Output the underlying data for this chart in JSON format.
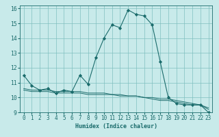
{
  "title": "",
  "xlabel": "Humidex (Indice chaleur)",
  "background_color": "#c8eaea",
  "grid_color": "#7fbfbf",
  "line_color": "#1a6b6b",
  "xlim": [
    -0.5,
    23.5
  ],
  "ylim": [
    9,
    16.2
  ],
  "yticks": [
    9,
    10,
    11,
    12,
    13,
    14,
    15,
    16
  ],
  "xticks": [
    0,
    1,
    2,
    3,
    4,
    5,
    6,
    7,
    8,
    9,
    10,
    11,
    12,
    13,
    14,
    15,
    16,
    17,
    18,
    19,
    20,
    21,
    22,
    23
  ],
  "series1_x": [
    0,
    1,
    2,
    3,
    4,
    5,
    6,
    7,
    8,
    9,
    10,
    11,
    12,
    13,
    14,
    15,
    16,
    17,
    18,
    19,
    20,
    21,
    22,
    23
  ],
  "series1_y": [
    11.5,
    10.8,
    10.5,
    10.6,
    10.3,
    10.5,
    10.4,
    11.5,
    10.9,
    12.7,
    14.0,
    14.9,
    14.7,
    15.9,
    15.6,
    15.5,
    14.9,
    12.4,
    10.0,
    9.6,
    9.5,
    9.5,
    9.5,
    9.0
  ],
  "series2_x": [
    0,
    1,
    2,
    3,
    4,
    5,
    6,
    7,
    8,
    9,
    10,
    11,
    12,
    13,
    14,
    15,
    16,
    17,
    18,
    19,
    20,
    21,
    22,
    23
  ],
  "series2_y": [
    10.5,
    10.4,
    10.4,
    10.4,
    10.3,
    10.3,
    10.3,
    10.3,
    10.2,
    10.2,
    10.2,
    10.2,
    10.1,
    10.1,
    10.1,
    10.0,
    10.0,
    9.9,
    9.9,
    9.8,
    9.7,
    9.6,
    9.5,
    9.3
  ],
  "series3_x": [
    0,
    1,
    2,
    3,
    4,
    5,
    6,
    7,
    8,
    9,
    10,
    11,
    12,
    13,
    14,
    15,
    16,
    17,
    18,
    19,
    20,
    21,
    22,
    23
  ],
  "series3_y": [
    10.6,
    10.5,
    10.5,
    10.5,
    10.4,
    10.4,
    10.4,
    10.4,
    10.3,
    10.3,
    10.3,
    10.2,
    10.2,
    10.1,
    10.1,
    10.0,
    9.9,
    9.8,
    9.8,
    9.7,
    9.6,
    9.5,
    9.5,
    9.2
  ],
  "xlabel_fontsize": 6.0,
  "tick_fontsize": 5.5
}
